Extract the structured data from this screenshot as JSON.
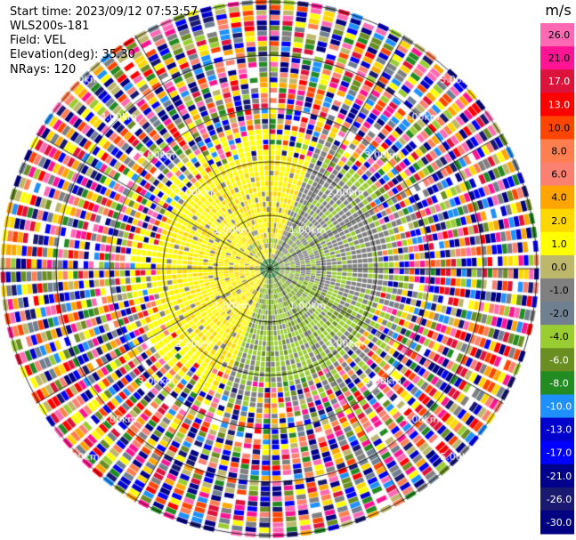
{
  "header": {
    "start_time": "Start time: 2023/09/12 07:53:57",
    "site": "WLS200s-181",
    "field": "Field: VEL",
    "elevation": "Elevation(deg): 35.30",
    "nrays": "NRays: 120"
  },
  "colorbar": {
    "unit": "m/s",
    "levels": [
      26.0,
      21.0,
      17.0,
      13.0,
      10.0,
      8.0,
      6.0,
      4.0,
      2.0,
      1.0,
      0.0,
      -1.0,
      -2.0,
      -4.0,
      -6.0,
      -8.0,
      -10.0,
      -13.0,
      -17.0,
      -21.0,
      -26.0,
      -30.0
    ],
    "tick_labels": [
      "26.0",
      "21.0",
      "17.0",
      "13.0",
      "10.0",
      "8.0",
      "6.0",
      "4.0",
      "2.0",
      "1.0",
      "0.0",
      "-1.0",
      "-2.0",
      "-4.0",
      "-6.0",
      "-8.0",
      "-10.0",
      "-13.0",
      "-17.0",
      "-21.0",
      "-26.0",
      "-30.0"
    ],
    "colors": [
      "#ff69b4",
      "#ff1493",
      "#dc143c",
      "#ff0000",
      "#ff4500",
      "#ff7f50",
      "#fa8072",
      "#ffa500",
      "#ffd700",
      "#ffff00",
      "#bdb76b",
      "#808080",
      "#708090",
      "#9acd32",
      "#6b8e23",
      "#228b22",
      "#1e90ff",
      "#0000cd",
      "#0000ff",
      "#00008b",
      "#191970",
      "#000080"
    ]
  },
  "chart_data": {
    "type": "heatmap",
    "title": "",
    "plot": "polar PPI velocity scan",
    "nrays": 120,
    "range_ring_labels": [
      "1.00km",
      "2.00km",
      "3.00km",
      "4.00km",
      "5.00km"
    ],
    "range_rings_km": [
      1,
      2,
      3,
      4,
      5
    ],
    "max_range_km": 5.2,
    "spoke_azimuths_deg": [
      0,
      30,
      60,
      90,
      120,
      150,
      180,
      210,
      240,
      270,
      300,
      330
    ],
    "inner_field_note": "near field within ~2.5 km is dominated by yellow (2.0 to 4.0 m/s) on the west/north side and grey/green (0.0 to -4.0 m/s) on the east/south side; outer ranges show noisy values across the full scale",
    "vmin": -30,
    "vmax": 30
  }
}
